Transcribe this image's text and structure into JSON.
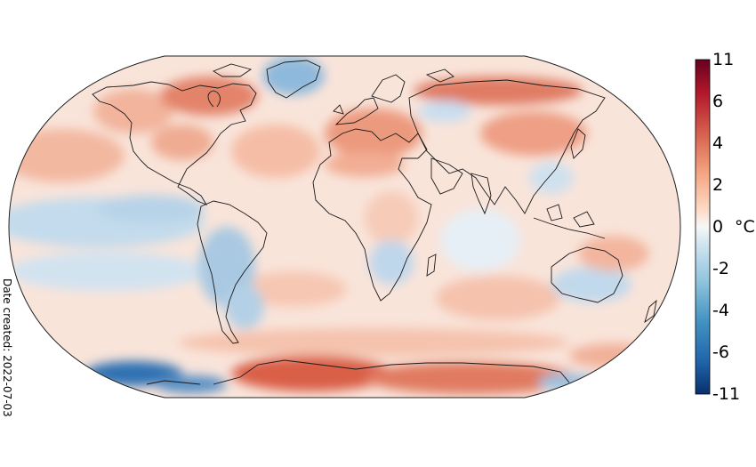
{
  "map": {
    "projection": "Robinson",
    "variable": "surface air temperature anomaly",
    "date_created": "Date created: 2022-07-03"
  },
  "colorbar": {
    "unit": "°C",
    "ticks": [
      "11",
      "6",
      "4",
      "2",
      "0",
      "-2",
      "-4",
      "-6",
      "-11"
    ],
    "colors": [
      "#08306b",
      "#2166ac",
      "#4393c3",
      "#92c5de",
      "#d1e5f0",
      "#f7f7f7",
      "#fddbc7",
      "#f4a582",
      "#d6604d",
      "#b2182b",
      "#67001f"
    ]
  },
  "anomaly_regions": [
    {
      "name": "Antarctica (Ross/Wilkes)",
      "sign": "warm",
      "color": "#d6604d"
    },
    {
      "name": "Antarctica (Weddell)",
      "sign": "warm",
      "color": "#e58267"
    },
    {
      "name": "Antarctica (Amundsen/Bellingshausen)",
      "sign": "cold",
      "color": "#2c6fb0"
    },
    {
      "name": "Northern Canada",
      "sign": "warm",
      "color": "#e5826a"
    },
    {
      "name": "Europe / Mediterranean",
      "sign": "warm",
      "color": "#ec9c80"
    },
    {
      "name": "Northern Siberia",
      "sign": "warm",
      "color": "#e07a62"
    },
    {
      "name": "Greenland",
      "sign": "cold",
      "color": "#7fb0d6"
    },
    {
      "name": "Eastern Pacific (La Niña)",
      "sign": "cold",
      "color": "#b5d3e8"
    },
    {
      "name": "South America",
      "sign": "cold",
      "color": "#9fc3df"
    },
    {
      "name": "Southern Africa",
      "sign": "cold",
      "color": "#bcd6ea"
    },
    {
      "name": "Australia",
      "sign": "cold",
      "color": "#c6dcee"
    },
    {
      "name": "Southern Ocean",
      "sign": "warm",
      "color": "#f6c4ad"
    }
  ]
}
